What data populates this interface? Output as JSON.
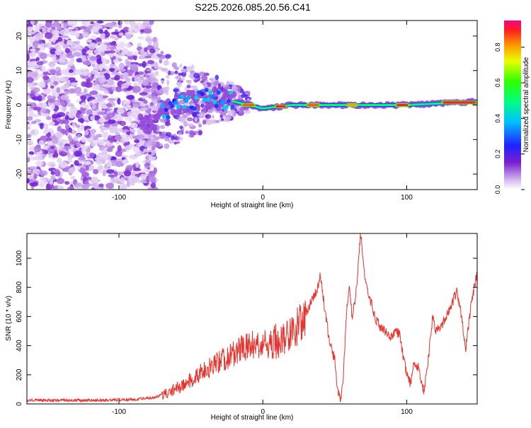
{
  "title": "S225.2026.085.20.56.C41",
  "chart_data": [
    {
      "type": "heatmap",
      "title": "S225.2026.085.20.56.C41",
      "xlabel": "Height of straight line (km)",
      "ylabel": "Frequency (Hz)",
      "xlim": [
        -164,
        149
      ],
      "ylim": [
        -24.5,
        24.5
      ],
      "xticks": [
        -100,
        0,
        100
      ],
      "yticks": [
        -20,
        -10,
        0,
        10,
        20
      ],
      "colorbar": {
        "label": "Normalized spectral amplitude",
        "range": [
          0,
          0.95
        ],
        "ticks": [
          0,
          0.2,
          0.4,
          0.6,
          0.8
        ]
      },
      "noise_region_x": [
        -164,
        -80
      ],
      "ridge": {
        "description": "narrow band near 0 Hz",
        "x_start": -85,
        "x_end": 149,
        "frequency_points": [
          [
            -85,
            -6
          ],
          [
            -60,
            0
          ],
          [
            -40,
            2
          ],
          [
            -20,
            1
          ],
          [
            0,
            -1
          ],
          [
            20,
            0
          ],
          [
            60,
            0
          ],
          [
            100,
            0
          ],
          [
            149,
            1
          ]
        ]
      },
      "peak_segments": [
        {
          "x": [
            -15,
            -5
          ],
          "amplitude": 0.9
        },
        {
          "x": [
            8,
            17
          ],
          "amplitude": 0.95
        },
        {
          "x": [
            30,
            40
          ],
          "amplitude": 0.9
        },
        {
          "x": [
            58,
            66
          ],
          "amplitude": 0.85
        },
        {
          "x": [
            92,
            102
          ],
          "amplitude": 0.95
        },
        {
          "x": [
            124,
            149
          ],
          "amplitude": 0.95
        }
      ]
    },
    {
      "type": "line",
      "xlabel": "Height of straight line (km)",
      "ylabel": "SNR (10 * v/v)",
      "xlim": [
        -164,
        149
      ],
      "ylim": [
        0,
        1170
      ],
      "xticks": [
        -100,
        0,
        100
      ],
      "yticks": [
        0,
        200,
        400,
        600,
        800,
        1000
      ],
      "series": [
        {
          "name": "SNR",
          "color": "#e8332d",
          "points": [
            [
              -164,
              25
            ],
            [
              -120,
              25
            ],
            [
              -90,
              30
            ],
            [
              -75,
              45
            ],
            [
              -65,
              80
            ],
            [
              -55,
              130
            ],
            [
              -45,
              200
            ],
            [
              -35,
              260
            ],
            [
              -25,
              320
            ],
            [
              -15,
              380
            ],
            [
              0,
              420
            ],
            [
              10,
              430
            ],
            [
              20,
              470
            ],
            [
              30,
              620
            ],
            [
              38,
              800
            ],
            [
              40,
              900
            ],
            [
              43,
              650
            ],
            [
              46,
              450
            ],
            [
              50,
              300
            ],
            [
              52,
              100
            ],
            [
              54,
              20
            ],
            [
              56,
              200
            ],
            [
              58,
              600
            ],
            [
              60,
              800
            ],
            [
              62,
              600
            ],
            [
              64,
              700
            ],
            [
              66,
              900
            ],
            [
              68,
              1170
            ],
            [
              70,
              950
            ],
            [
              72,
              800
            ],
            [
              75,
              700
            ],
            [
              78,
              600
            ],
            [
              80,
              550
            ],
            [
              84,
              520
            ],
            [
              88,
              450
            ],
            [
              92,
              500
            ],
            [
              95,
              480
            ],
            [
              98,
              300
            ],
            [
              100,
              200
            ],
            [
              103,
              130
            ],
            [
              105,
              300
            ],
            [
              108,
              250
            ],
            [
              112,
              80
            ],
            [
              115,
              300
            ],
            [
              118,
              600
            ],
            [
              120,
              500
            ],
            [
              125,
              550
            ],
            [
              130,
              650
            ],
            [
              135,
              780
            ],
            [
              138,
              600
            ],
            [
              141,
              380
            ],
            [
              145,
              700
            ],
            [
              149,
              900
            ]
          ]
        }
      ]
    }
  ]
}
